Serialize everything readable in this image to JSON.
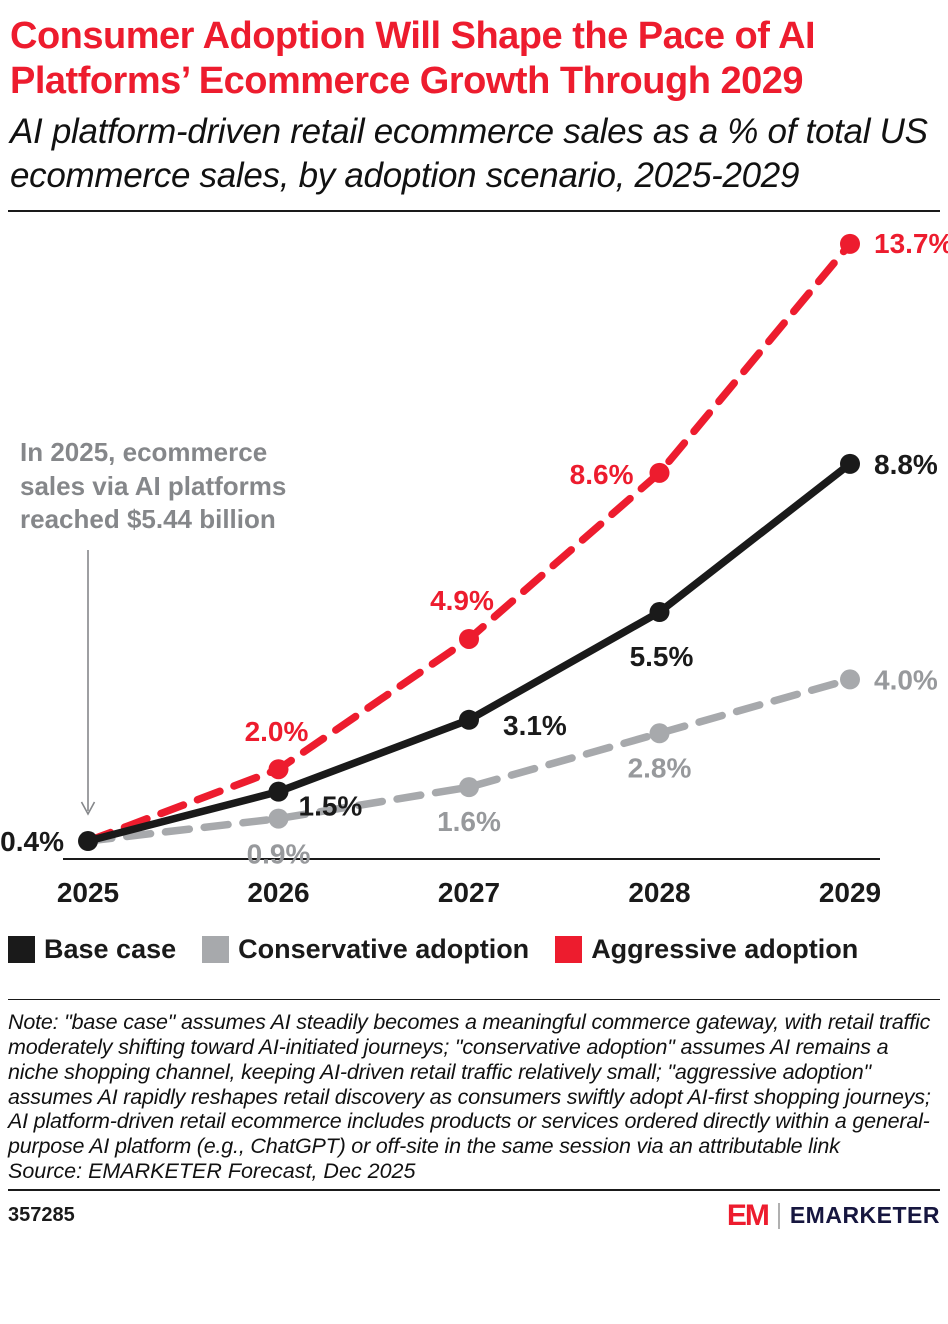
{
  "colors": {
    "title_red": "#ed1c2e",
    "base_case_black": "#1a1a1a",
    "conservative_gray": "#a7a9ac",
    "aggressive_red": "#ed1c2e",
    "annotation_gray": "#85878a",
    "logo_navy": "#16163f"
  },
  "header": {
    "title": "Consumer Adoption Will Shape the Pace of AI Platforms’ Ecommerce Growth Through 2029",
    "subtitle": "AI platform-driven retail ecommerce sales as a % of total US ecommerce sales, by adoption scenario, 2025-2029"
  },
  "chart_data": {
    "type": "line",
    "x_labels": [
      "2025",
      "2026",
      "2027",
      "2028",
      "2029"
    ],
    "ylim": [
      0,
      14.3
    ],
    "grid": false,
    "legend_position": "bottom",
    "series": [
      {
        "name": "Base case",
        "color": "#1a1a1a",
        "label_color": "#1a1a1a",
        "line_style": "solid",
        "values": [
          0.4,
          1.5,
          3.1,
          5.5,
          8.8
        ],
        "point_labels": [
          "0.4%",
          "1.5%",
          "3.1%",
          "5.5%",
          "8.8%"
        ]
      },
      {
        "name": "Conservative adoption",
        "color": "#a7a9ac",
        "label_color": "#97999c",
        "line_style": "dashed",
        "values": [
          0.4,
          0.9,
          1.6,
          2.8,
          4.0
        ],
        "point_labels": [
          "",
          "0.9%",
          "1.6%",
          "2.8%",
          "4.0%"
        ]
      },
      {
        "name": "Aggressive adoption",
        "color": "#ed1c2e",
        "label_color": "#ed1c2e",
        "line_style": "dashed",
        "values": [
          0.4,
          2.0,
          4.9,
          8.6,
          13.7
        ],
        "point_labels": [
          "",
          "2.0%",
          "4.9%",
          "8.6%",
          "13.7%"
        ]
      }
    ],
    "annotation": "In 2025, ecommerce sales via AI platforms reached $5.44 billion"
  },
  "note": "Note: \"base case\" assumes AI steadily becomes a meaningful commerce gateway, with retail traffic moderately shifting toward AI-initiated journeys; \"conservative adoption\" assumes AI remains a niche shopping channel, keeping AI-driven retail traffic relatively small; \"aggressive adoption\" assumes AI rapidly reshapes retail discovery as consumers swiftly adopt AI-first shopping journeys; AI platform-driven retail ecommerce includes products or services ordered directly within a general-purpose AI platform (e.g., ChatGPT) or off-site in the same session via an attributable link",
  "source": "Source: EMARKETER Forecast, Dec 2025",
  "footer": {
    "chart_id": "357285",
    "logo_mark": "EM",
    "logo_text": "EMARKETER"
  }
}
